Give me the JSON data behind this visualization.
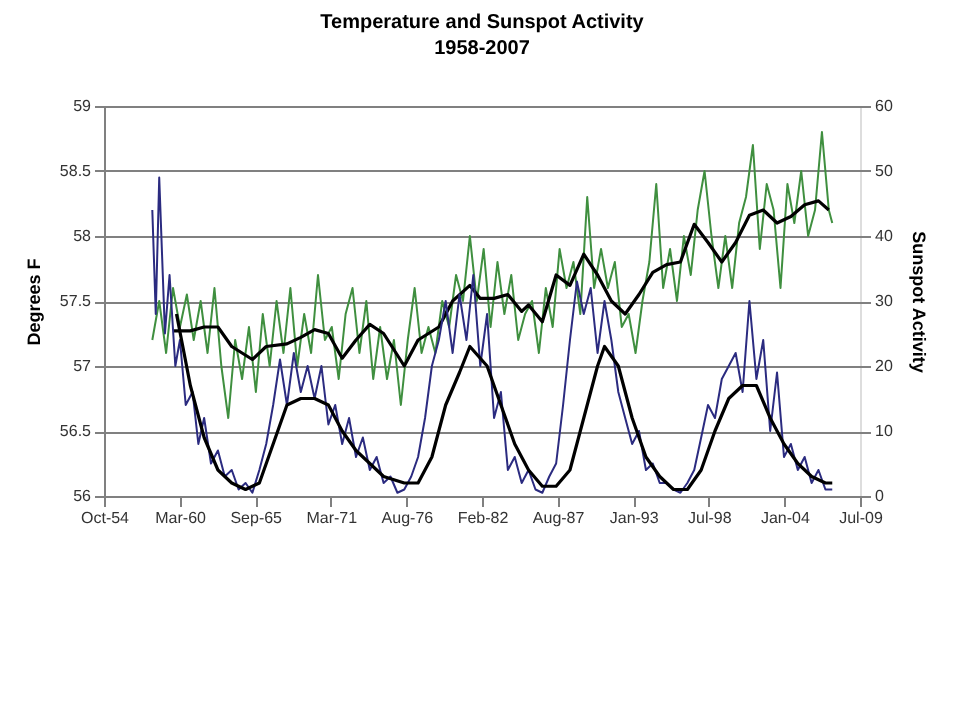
{
  "chart_data": {
    "type": "line",
    "title": "Temperature and Sunspot Activity",
    "subtitle": "1958-2007",
    "ylabel": "Degrees F",
    "y2label": "Sunspot Activity",
    "xlim": [
      "1954-10-01",
      "2009-07-04"
    ],
    "xticks": [
      {
        "value": "1954-10-01",
        "label": "Oct-54"
      },
      {
        "value": "1960-03-23",
        "label": "Mar-60"
      },
      {
        "value": "1965-09-13",
        "label": "Sep-65"
      },
      {
        "value": "1971-03-06",
        "label": "Mar-71"
      },
      {
        "value": "1976-08-26",
        "label": "Aug-76"
      },
      {
        "value": "1982-02-16",
        "label": "Feb-82"
      },
      {
        "value": "1987-08-09",
        "label": "Aug-87"
      },
      {
        "value": "1993-01-29",
        "label": "Jan-93"
      },
      {
        "value": "1998-07-22",
        "label": "Jul-98"
      },
      {
        "value": "2004-01-12",
        "label": "Jan-04"
      },
      {
        "value": "2009-07-04",
        "label": "Jul-09"
      }
    ],
    "ylim": [
      56,
      59
    ],
    "yticks": [
      56,
      56.5,
      57,
      57.5,
      58,
      58.5,
      59
    ],
    "y2lim": [
      0,
      60
    ],
    "y2ticks": [
      0,
      10,
      20,
      30,
      40,
      50,
      60
    ],
    "grid": "y",
    "marker": "none",
    "line_style": "solid",
    "series": [
      {
        "color": "#3f8f3f",
        "x": [
          "1958-04",
          "1958-10",
          "1959-04",
          "1959-10",
          "1960-04",
          "1960-10",
          "1961-04",
          "1961-10",
          "1962-04",
          "1962-10",
          "1963-04",
          "1963-10",
          "1964-04",
          "1964-10",
          "1965-04",
          "1965-10",
          "1966-04",
          "1966-10",
          "1967-04",
          "1967-10",
          "1968-04",
          "1968-10",
          "1969-04",
          "1969-10",
          "1970-04",
          "1970-10",
          "1971-04",
          "1971-10",
          "1972-04",
          "1972-10",
          "1973-04",
          "1973-10",
          "1974-04",
          "1974-10",
          "1975-04",
          "1975-10",
          "1976-04",
          "1976-10",
          "1977-04",
          "1977-10",
          "1978-04",
          "1978-10",
          "1979-04",
          "1979-10",
          "1980-04",
          "1980-10",
          "1981-04",
          "1981-10",
          "1982-04",
          "1982-10",
          "1983-04",
          "1983-10",
          "1984-04",
          "1984-10",
          "1985-04",
          "1985-10",
          "1986-04",
          "1986-10",
          "1987-04",
          "1987-10",
          "1988-04",
          "1988-10",
          "1989-04",
          "1989-10",
          "1990-04",
          "1990-10",
          "1991-04",
          "1991-10",
          "1992-04",
          "1992-10",
          "1993-04",
          "1993-10",
          "1994-04",
          "1994-10",
          "1995-04",
          "1995-10",
          "1996-04",
          "1996-10",
          "1997-04",
          "1997-10",
          "1998-04",
          "1998-10",
          "1999-04",
          "1999-10",
          "2000-04",
          "2000-10",
          "2001-04",
          "2001-10",
          "2002-04",
          "2002-10",
          "2003-04",
          "2003-10",
          "2004-04",
          "2004-10",
          "2005-04",
          "2005-10",
          "2006-04",
          "2006-10",
          "2007-04",
          "2007-07"
        ],
        "values": [
          57.2,
          57.5,
          57.1,
          57.6,
          57.3,
          57.55,
          57.2,
          57.5,
          57.1,
          57.6,
          57.0,
          56.6,
          57.2,
          56.9,
          57.3,
          56.8,
          57.4,
          57.0,
          57.5,
          57.1,
          57.6,
          57.0,
          57.4,
          57.1,
          57.7,
          57.2,
          57.3,
          56.9,
          57.4,
          57.6,
          57.1,
          57.5,
          56.9,
          57.3,
          56.9,
          57.2,
          56.7,
          57.2,
          57.6,
          57.1,
          57.3,
          57.1,
          57.5,
          57.3,
          57.7,
          57.5,
          58.0,
          57.5,
          57.9,
          57.3,
          57.8,
          57.4,
          57.7,
          57.2,
          57.4,
          57.5,
          57.1,
          57.6,
          57.3,
          57.9,
          57.6,
          57.8,
          57.4,
          58.3,
          57.6,
          57.9,
          57.6,
          57.8,
          57.3,
          57.4,
          57.1,
          57.5,
          57.8,
          58.4,
          57.6,
          57.9,
          57.5,
          58.0,
          57.7,
          58.2,
          58.5,
          58.0,
          57.6,
          58.0,
          57.6,
          58.1,
          58.3,
          58.7,
          57.9,
          58.4,
          58.2,
          57.6,
          58.4,
          58.1,
          58.5,
          58.0,
          58.2,
          58.8,
          58.2,
          58.1
        ]
      },
      {
        "color": "#2b2b80",
        "axis": "y2",
        "x": [
          "1958-04",
          "1958-07",
          "1958-10",
          "1959-03",
          "1959-07",
          "1959-12",
          "1960-04",
          "1960-09",
          "1961-03",
          "1961-08",
          "1962-01",
          "1962-07",
          "1963-01",
          "1963-07",
          "1964-01",
          "1964-07",
          "1965-01",
          "1965-07",
          "1966-01",
          "1966-07",
          "1967-01",
          "1967-07",
          "1968-01",
          "1968-07",
          "1969-01",
          "1969-07",
          "1970-01",
          "1970-07",
          "1971-01",
          "1971-07",
          "1972-01",
          "1972-07",
          "1973-01",
          "1973-07",
          "1974-01",
          "1974-07",
          "1975-01",
          "1975-07",
          "1976-01",
          "1976-07",
          "1977-01",
          "1977-07",
          "1978-01",
          "1978-07",
          "1979-01",
          "1979-07",
          "1980-01",
          "1980-07",
          "1981-01",
          "1981-07",
          "1982-01",
          "1982-07",
          "1983-01",
          "1983-07",
          "1984-01",
          "1984-07",
          "1985-01",
          "1985-07",
          "1986-01",
          "1986-07",
          "1987-01",
          "1987-07",
          "1988-01",
          "1988-07",
          "1989-01",
          "1989-07",
          "1990-01",
          "1990-07",
          "1991-01",
          "1991-07",
          "1992-01",
          "1992-07",
          "1993-01",
          "1993-07",
          "1994-01",
          "1994-07",
          "1995-01",
          "1995-07",
          "1996-01",
          "1996-07",
          "1997-01",
          "1997-07",
          "1998-01",
          "1998-07",
          "1999-01",
          "1999-07",
          "2000-01",
          "2000-07",
          "2001-01",
          "2001-07",
          "2002-01",
          "2002-07",
          "2003-01",
          "2003-07",
          "2004-01",
          "2004-07",
          "2005-01",
          "2005-07",
          "2006-01",
          "2006-07",
          "2007-01",
          "2007-07"
        ],
        "values": [
          44,
          28,
          49,
          25,
          34,
          20,
          24,
          14,
          16,
          8,
          12,
          5,
          7,
          3,
          4,
          1,
          2,
          0.5,
          4,
          8,
          14,
          21,
          14,
          22,
          16,
          20,
          15,
          20,
          11,
          14,
          8,
          12,
          6,
          9,
          4,
          6,
          2,
          3,
          0.5,
          1,
          3,
          6,
          12,
          20,
          24,
          30,
          22,
          31,
          24,
          34,
          20,
          28,
          12,
          16,
          4,
          6,
          2,
          4,
          1,
          0.5,
          3,
          5,
          14,
          24,
          33,
          28,
          32,
          22,
          30,
          24,
          16,
          12,
          8,
          10,
          4,
          5,
          2,
          2,
          1,
          0.5,
          2,
          4,
          9,
          14,
          12,
          18,
          20,
          22,
          16,
          30,
          18,
          24,
          10,
          19,
          6,
          8,
          4,
          6,
          2,
          4,
          1,
          1
        ]
      },
      {
        "color": "#000000",
        "x": [
          "1959-10",
          "1961-01",
          "1962-01",
          "1963-01",
          "1964-01",
          "1965-07",
          "1966-07",
          "1968-01",
          "1969-01",
          "1970-01",
          "1971-01",
          "1972-01",
          "1973-01",
          "1974-01",
          "1975-01",
          "1976-07",
          "1977-07",
          "1979-01",
          "1980-01",
          "1981-04",
          "1982-01",
          "1983-01",
          "1984-01",
          "1985-01",
          "1985-07",
          "1986-07",
          "1987-07",
          "1988-07",
          "1989-07",
          "1990-07",
          "1991-07",
          "1992-07",
          "1993-07",
          "1994-07",
          "1995-07",
          "1996-07",
          "1997-07",
          "1998-07",
          "1999-07",
          "2000-07",
          "2001-07",
          "2002-07",
          "2003-07",
          "2004-07",
          "2005-07",
          "2006-07",
          "2007-04"
        ],
        "values": [
          57.27,
          57.27,
          57.3,
          57.3,
          57.15,
          57.05,
          57.15,
          57.17,
          57.22,
          57.28,
          57.25,
          57.06,
          57.2,
          57.32,
          57.25,
          57.0,
          57.2,
          57.3,
          57.5,
          57.62,
          57.52,
          57.52,
          57.55,
          57.42,
          57.47,
          57.34,
          57.7,
          57.62,
          57.86,
          57.7,
          57.5,
          57.4,
          57.55,
          57.72,
          57.78,
          57.8,
          58.09,
          57.95,
          57.8,
          57.95,
          58.16,
          58.2,
          58.1,
          58.15,
          58.24,
          58.27,
          58.2
        ]
      },
      {
        "color": "#000000",
        "axis": "y2",
        "x": [
          "1960-01",
          "1961-01",
          "1962-01",
          "1963-01",
          "1964-01",
          "1965-01",
          "1966-01",
          "1967-01",
          "1968-01",
          "1969-01",
          "1970-01",
          "1971-01",
          "1972-01",
          "1973-01",
          "1974-01",
          "1975-01",
          "1976-07",
          "1977-07",
          "1978-07",
          "1979-07",
          "1980-07",
          "1981-04",
          "1982-07",
          "1983-07",
          "1984-07",
          "1985-07",
          "1986-07",
          "1987-07",
          "1988-07",
          "1989-07",
          "1990-07",
          "1991-01",
          "1992-01",
          "1993-01",
          "1994-01",
          "1995-01",
          "1996-01",
          "1997-01",
          "1998-01",
          "1999-01",
          "2000-01",
          "2001-01",
          "2002-01",
          "2003-01",
          "2004-01",
          "2005-01",
          "2006-01",
          "2007-01",
          "2007-07"
        ],
        "values": [
          28,
          17,
          9,
          4,
          2,
          1,
          2,
          8,
          14,
          15,
          15,
          14,
          10,
          7,
          5,
          3,
          2,
          2,
          6,
          14,
          19,
          23,
          20,
          14,
          8,
          4,
          1.5,
          1.5,
          4,
          12,
          20,
          23,
          20,
          12,
          6,
          3,
          1,
          1,
          4,
          10,
          15,
          17,
          17,
          12,
          8,
          5,
          3,
          2,
          2
        ]
      }
    ]
  }
}
